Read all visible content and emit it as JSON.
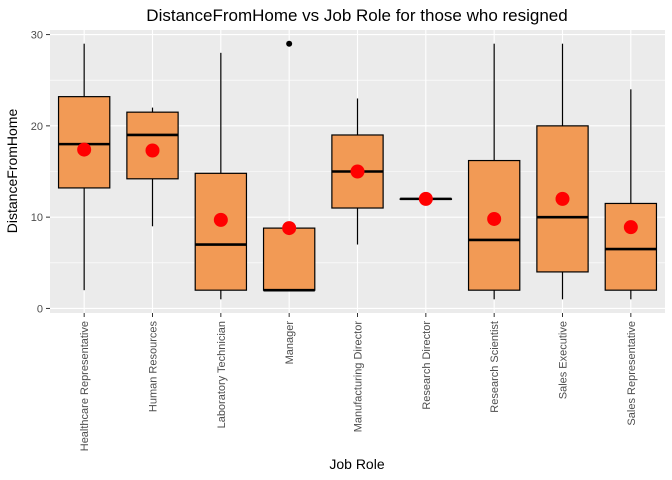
{
  "chart_data": {
    "type": "boxplot",
    "title": "DistanceFromHome vs Job Role for those who resigned",
    "xlabel": "Job Role",
    "ylabel": "DistanceFromHome",
    "ylim": [
      -0.5,
      30.5
    ],
    "yticks": [
      0,
      10,
      20,
      30
    ],
    "grid": true,
    "legend": "none",
    "colors": {
      "panel_bg": "#ebebeb",
      "grid": "#ffffff",
      "box_fill": "#f29a55",
      "box_stroke": "#000000",
      "mean_point": "#ff0000",
      "outlier": "#000000"
    },
    "categories": [
      "Healthcare Representative",
      "Human Resources",
      "Laboratory Technician",
      "Manager",
      "Manufacturing Director",
      "Research Director",
      "Research Scientist",
      "Sales Executive",
      "Sales Representative"
    ],
    "boxes": [
      {
        "min": 2,
        "q1": 13.2,
        "median": 18,
        "q3": 23.2,
        "max": 29,
        "mean": 17.4,
        "outliers": []
      },
      {
        "min": 9,
        "q1": 14.2,
        "median": 19,
        "q3": 21.5,
        "max": 22,
        "mean": 17.3,
        "outliers": []
      },
      {
        "min": 1,
        "q1": 2,
        "median": 7,
        "q3": 14.8,
        "max": 28,
        "mean": 9.7,
        "outliers": []
      },
      {
        "min": 2,
        "q1": 2,
        "median": 2,
        "q3": 8.8,
        "max": 8.8,
        "mean": 8.8,
        "outliers": [
          29
        ]
      },
      {
        "min": 7,
        "q1": 11,
        "median": 15,
        "q3": 19,
        "max": 23,
        "mean": 15,
        "outliers": []
      },
      {
        "min": 12,
        "q1": 12,
        "median": 12,
        "q3": 12,
        "max": 12,
        "mean": 12,
        "outliers": []
      },
      {
        "min": 1,
        "q1": 2,
        "median": 7.5,
        "q3": 16.2,
        "max": 29,
        "mean": 9.8,
        "outliers": []
      },
      {
        "min": 1,
        "q1": 4,
        "median": 10,
        "q3": 20,
        "max": 29,
        "mean": 12,
        "outliers": []
      },
      {
        "min": 1,
        "q1": 2,
        "median": 6.5,
        "q3": 11.5,
        "max": 24,
        "mean": 8.9,
        "outliers": []
      }
    ]
  }
}
